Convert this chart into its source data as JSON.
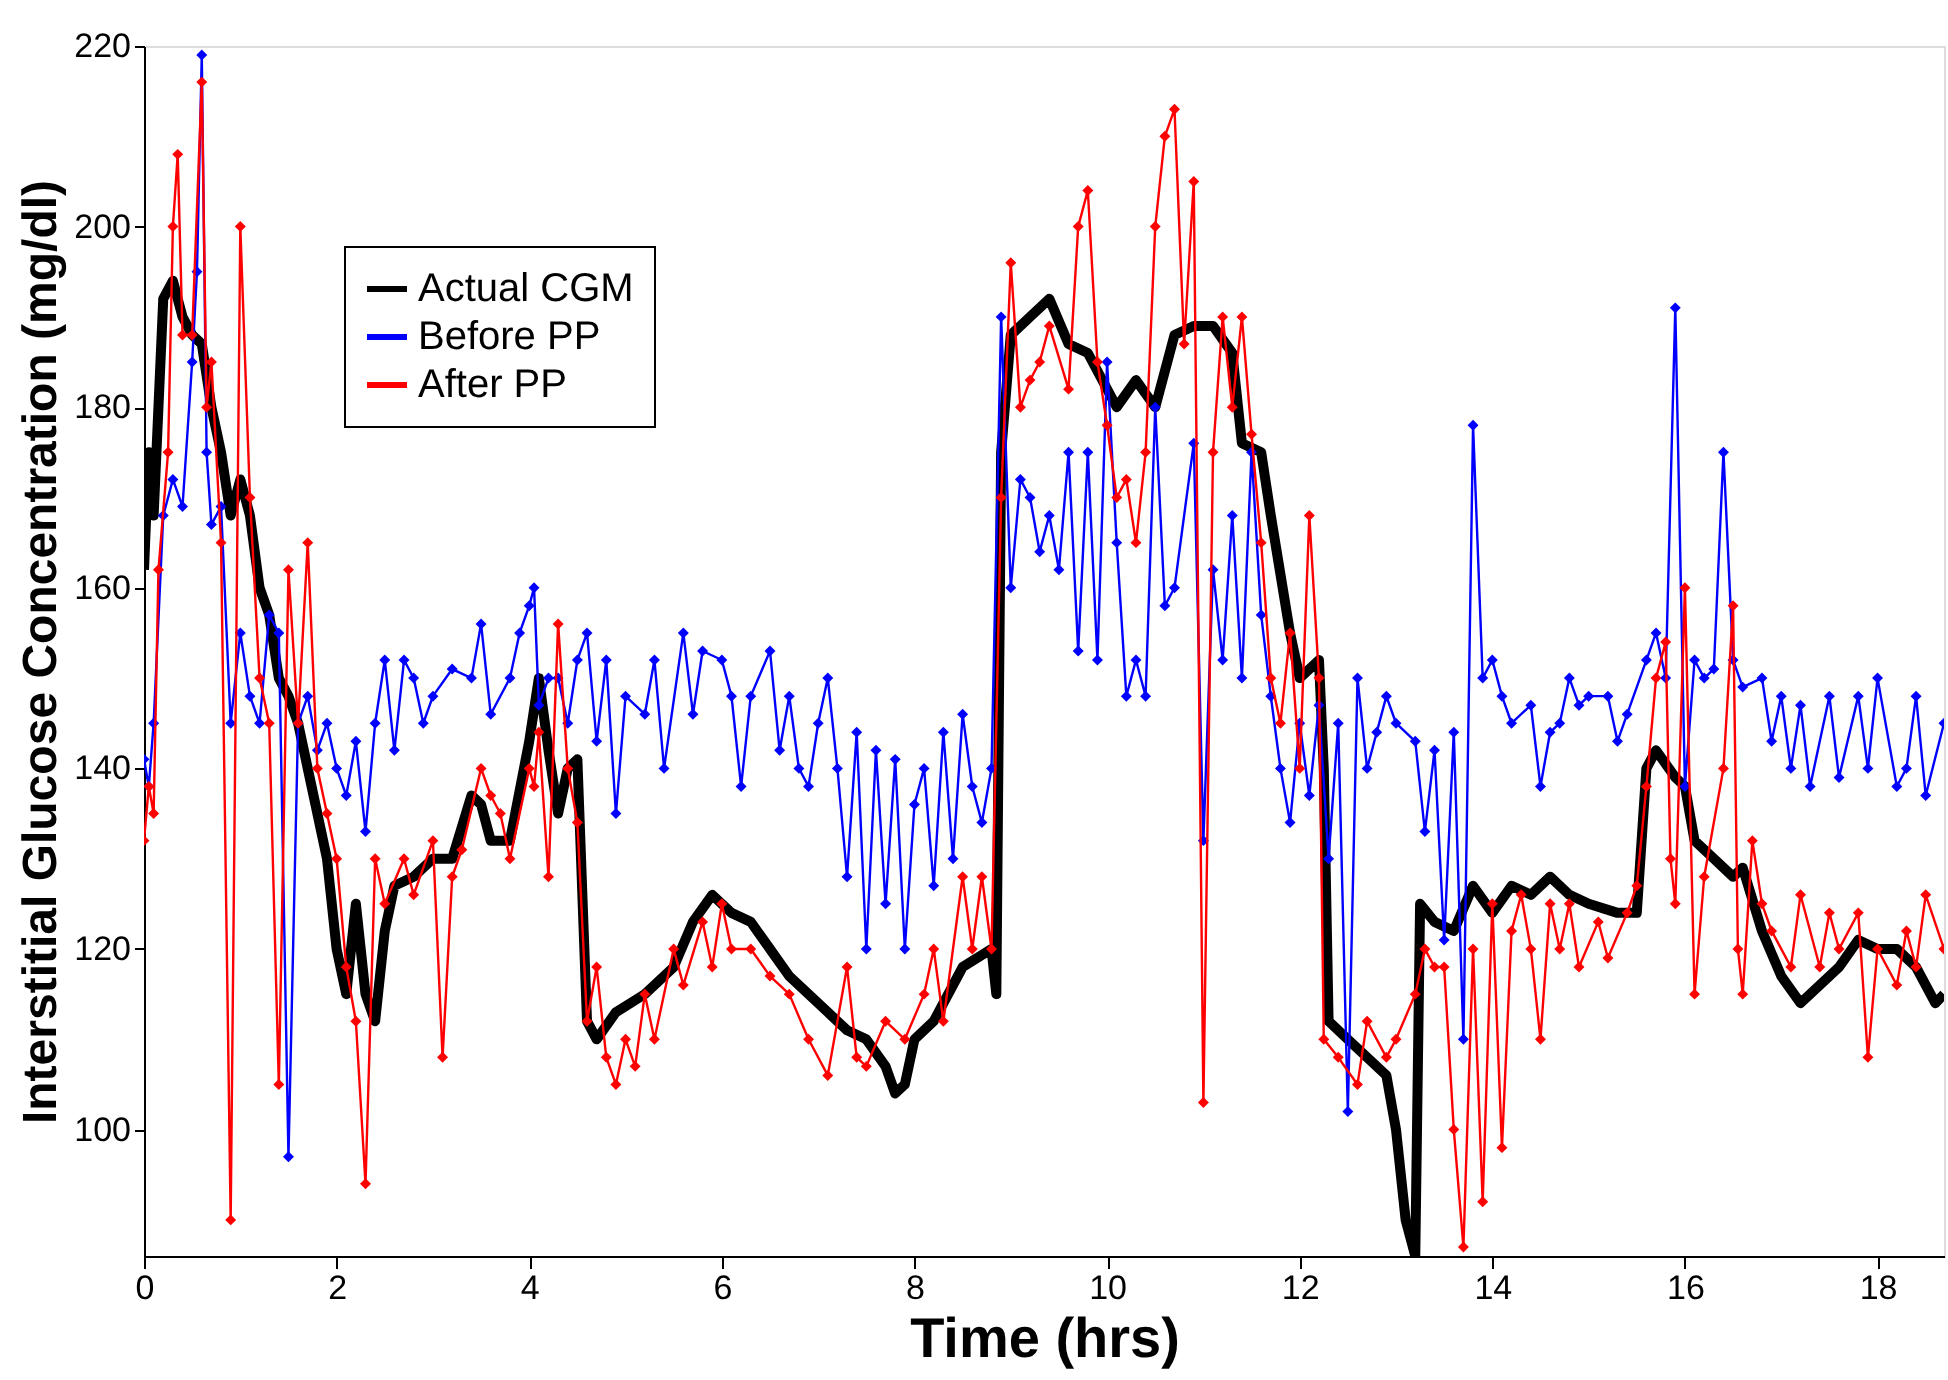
{
  "chart_data": {
    "type": "line",
    "xlabel": "Time (hrs)",
    "ylabel": "Interstitial Glucose Concentration (mg/dl)",
    "xlim": [
      0,
      18.69
    ],
    "ylim": [
      86,
      220
    ],
    "xticks": [
      0,
      2,
      4,
      6,
      8,
      10,
      12,
      14,
      16,
      18
    ],
    "yticks": [
      100,
      120,
      140,
      160,
      180,
      200,
      220
    ],
    "grid": false,
    "legend": "top left",
    "series": [
      {
        "name": "Actual CGM",
        "color": "#000000",
        "marker": "none",
        "x": [
          0,
          0.05,
          0.1,
          0.2,
          0.3,
          0.4,
          0.5,
          0.6,
          0.7,
          0.8,
          0.9,
          1.0,
          1.1,
          1.2,
          1.3,
          1.4,
          1.5,
          1.6,
          1.7,
          1.8,
          1.9,
          2.0,
          2.1,
          2.2,
          2.3,
          2.4,
          2.5,
          2.6,
          2.8,
          3.0,
          3.2,
          3.4,
          3.5,
          3.6,
          3.8,
          4.0,
          4.1,
          4.2,
          4.3,
          4.4,
          4.5,
          4.6,
          4.7,
          4.9,
          5.2,
          5.5,
          5.7,
          5.9,
          6.1,
          6.3,
          6.5,
          6.7,
          6.9,
          7.1,
          7.3,
          7.5,
          7.7,
          7.8,
          7.9,
          8.0,
          8.2,
          8.5,
          8.8,
          8.85,
          8.9,
          9.0,
          9.2,
          9.4,
          9.6,
          9.8,
          10.0,
          10.1,
          10.3,
          10.5,
          10.7,
          10.9,
          11.1,
          11.3,
          11.4,
          11.6,
          11.7,
          11.9,
          12.0,
          12.2,
          12.25,
          12.3,
          12.5,
          12.7,
          12.9,
          13.0,
          13.1,
          13.2,
          13.25,
          13.4,
          13.6,
          13.8,
          14.0,
          14.2,
          14.4,
          14.6,
          14.8,
          15.0,
          15.3,
          15.5,
          15.6,
          15.7,
          15.9,
          16.0,
          16.1,
          16.3,
          16.5,
          16.6,
          16.8,
          17.0,
          17.2,
          17.4,
          17.6,
          17.8,
          18.0,
          18.2,
          18.4,
          18.6,
          18.69
        ],
        "values": [
          162,
          175,
          168,
          192,
          194,
          190,
          188,
          187,
          180,
          175,
          168,
          172,
          168,
          160,
          157,
          150,
          148,
          145,
          140,
          135,
          130,
          120,
          115,
          125,
          115,
          112,
          122,
          127,
          128,
          130,
          130,
          137,
          136,
          132,
          132,
          143,
          150,
          142,
          135,
          140,
          141,
          112,
          110,
          113,
          115,
          118,
          123,
          126,
          124,
          123,
          120,
          117,
          115,
          113,
          111,
          110,
          107,
          104,
          105,
          110,
          112,
          118,
          120,
          115,
          175,
          188,
          190,
          192,
          187,
          186,
          182,
          180,
          183,
          180,
          188,
          189,
          189,
          186,
          176,
          175,
          168,
          155,
          150,
          152,
          140,
          112,
          110,
          108,
          106,
          100,
          90,
          86,
          125,
          123,
          122,
          127,
          124,
          127,
          126,
          128,
          126,
          125,
          124,
          124,
          140,
          142,
          139,
          138,
          132,
          130,
          128,
          129,
          122,
          117,
          114,
          116,
          118,
          121,
          120,
          120,
          118,
          114,
          115
        ]
      },
      {
        "name": "Before PP",
        "color": "#0000ff",
        "marker": "diamond",
        "x": [
          0,
          0.05,
          0.1,
          0.2,
          0.3,
          0.4,
          0.5,
          0.55,
          0.6,
          0.65,
          0.7,
          0.8,
          0.9,
          1.0,
          1.1,
          1.2,
          1.3,
          1.4,
          1.5,
          1.6,
          1.7,
          1.8,
          1.9,
          2.0,
          2.1,
          2.2,
          2.3,
          2.4,
          2.5,
          2.6,
          2.7,
          2.8,
          2.9,
          3.0,
          3.2,
          3.4,
          3.5,
          3.6,
          3.8,
          3.9,
          4.0,
          4.05,
          4.1,
          4.2,
          4.3,
          4.4,
          4.5,
          4.6,
          4.7,
          4.8,
          4.9,
          5.0,
          5.2,
          5.3,
          5.4,
          5.6,
          5.7,
          5.8,
          6.0,
          6.1,
          6.2,
          6.3,
          6.5,
          6.6,
          6.7,
          6.8,
          6.9,
          7.0,
          7.1,
          7.2,
          7.3,
          7.4,
          7.5,
          7.6,
          7.7,
          7.8,
          7.9,
          8.0,
          8.1,
          8.2,
          8.3,
          8.4,
          8.5,
          8.6,
          8.7,
          8.8,
          8.9,
          9.0,
          9.1,
          9.2,
          9.3,
          9.4,
          9.5,
          9.6,
          9.7,
          9.8,
          9.9,
          10.0,
          10.1,
          10.2,
          10.3,
          10.4,
          10.5,
          10.6,
          10.7,
          10.9,
          11.0,
          11.1,
          11.2,
          11.3,
          11.4,
          11.5,
          11.6,
          11.7,
          11.8,
          11.9,
          12.0,
          12.1,
          12.2,
          12.3,
          12.4,
          12.5,
          12.6,
          12.7,
          12.8,
          12.9,
          13.0,
          13.2,
          13.3,
          13.4,
          13.5,
          13.6,
          13.7,
          13.8,
          13.9,
          14.0,
          14.1,
          14.2,
          14.4,
          14.5,
          14.6,
          14.7,
          14.8,
          14.9,
          15.0,
          15.2,
          15.3,
          15.4,
          15.6,
          15.7,
          15.8,
          15.9,
          16.0,
          16.1,
          16.2,
          16.3,
          16.4,
          16.5,
          16.6,
          16.8,
          16.9,
          17.0,
          17.1,
          17.2,
          17.3,
          17.5,
          17.6,
          17.8,
          17.9,
          18.0,
          18.2,
          18.3,
          18.4,
          18.5,
          18.69
        ],
        "values": [
          141,
          138,
          145,
          168,
          172,
          169,
          185,
          195,
          219,
          175,
          167,
          169,
          145,
          155,
          148,
          145,
          157,
          155,
          97,
          145,
          148,
          142,
          145,
          140,
          137,
          143,
          133,
          145,
          152,
          142,
          152,
          150,
          145,
          148,
          151,
          150,
          156,
          146,
          150,
          155,
          158,
          160,
          147,
          150,
          150,
          145,
          152,
          155,
          143,
          152,
          135,
          148,
          146,
          152,
          140,
          155,
          146,
          153,
          152,
          148,
          138,
          148,
          153,
          142,
          148,
          140,
          138,
          145,
          150,
          140,
          128,
          144,
          120,
          142,
          125,
          141,
          120,
          136,
          140,
          127,
          144,
          130,
          146,
          138,
          134,
          140,
          190,
          160,
          172,
          170,
          164,
          168,
          162,
          175,
          153,
          175,
          152,
          185,
          165,
          148,
          152,
          148,
          180,
          158,
          160,
          176,
          132,
          162,
          152,
          168,
          150,
          175,
          157,
          148,
          140,
          134,
          145,
          137,
          147,
          130,
          145,
          102,
          150,
          140,
          144,
          148,
          145,
          143,
          133,
          142,
          121,
          144,
          110,
          178,
          150,
          152,
          148,
          145,
          147,
          138,
          144,
          145,
          150,
          147,
          148,
          148,
          143,
          146,
          152,
          155,
          150,
          191,
          138,
          152,
          150,
          151,
          175,
          152,
          149,
          150,
          143,
          148,
          140,
          147,
          138,
          148,
          139,
          148,
          140,
          150,
          138,
          140,
          148,
          137,
          145
        ]
      },
      {
        "name": "After PP",
        "color": "#ff0000",
        "marker": "diamond",
        "x": [
          0,
          0.05,
          0.1,
          0.15,
          0.25,
          0.3,
          0.35,
          0.4,
          0.5,
          0.6,
          0.65,
          0.7,
          0.8,
          0.9,
          1.0,
          1.1,
          1.2,
          1.3,
          1.4,
          1.5,
          1.6,
          1.7,
          1.8,
          1.9,
          2.0,
          2.1,
          2.2,
          2.3,
          2.4,
          2.5,
          2.7,
          2.8,
          3.0,
          3.1,
          3.2,
          3.3,
          3.5,
          3.6,
          3.7,
          3.8,
          4.0,
          4.05,
          4.1,
          4.2,
          4.3,
          4.4,
          4.5,
          4.6,
          4.7,
          4.8,
          4.9,
          5.0,
          5.1,
          5.2,
          5.3,
          5.5,
          5.6,
          5.8,
          5.9,
          6.0,
          6.1,
          6.3,
          6.5,
          6.7,
          6.9,
          7.1,
          7.3,
          7.4,
          7.5,
          7.7,
          7.9,
          8.1,
          8.2,
          8.3,
          8.5,
          8.6,
          8.7,
          8.8,
          8.9,
          9.0,
          9.1,
          9.2,
          9.3,
          9.4,
          9.6,
          9.7,
          9.8,
          9.9,
          10.0,
          10.1,
          10.2,
          10.3,
          10.4,
          10.5,
          10.6,
          10.7,
          10.8,
          10.9,
          11.0,
          11.1,
          11.2,
          11.3,
          11.4,
          11.5,
          11.6,
          11.7,
          11.8,
          11.9,
          12.0,
          12.1,
          12.2,
          12.25,
          12.4,
          12.6,
          12.7,
          12.9,
          13.0,
          13.2,
          13.3,
          13.4,
          13.5,
          13.6,
          13.7,
          13.8,
          13.9,
          14.0,
          14.1,
          14.2,
          14.3,
          14.4,
          14.5,
          14.6,
          14.7,
          14.8,
          14.9,
          15.1,
          15.2,
          15.4,
          15.5,
          15.6,
          15.7,
          15.8,
          15.85,
          15.9,
          16.0,
          16.1,
          16.2,
          16.4,
          16.5,
          16.55,
          16.6,
          16.7,
          16.8,
          16.9,
          17.1,
          17.2,
          17.4,
          17.5,
          17.6,
          17.8,
          17.9,
          18.0,
          18.2,
          18.3,
          18.4,
          18.5,
          18.69
        ],
        "values": [
          132,
          138,
          135,
          162,
          175,
          200,
          208,
          188,
          188,
          216,
          180,
          185,
          165,
          90,
          200,
          170,
          150,
          145,
          105,
          162,
          145,
          165,
          140,
          135,
          130,
          118,
          112,
          94,
          130,
          125,
          130,
          126,
          132,
          108,
          128,
          131,
          140,
          137,
          135,
          130,
          140,
          138,
          144,
          128,
          156,
          140,
          134,
          112,
          118,
          108,
          105,
          110,
          107,
          115,
          110,
          120,
          116,
          123,
          118,
          125,
          120,
          120,
          117,
          115,
          110,
          106,
          118,
          108,
          107,
          112,
          110,
          115,
          120,
          112,
          128,
          120,
          128,
          120,
          170,
          196,
          180,
          183,
          185,
          189,
          182,
          200,
          204,
          185,
          178,
          170,
          172,
          165,
          175,
          200,
          210,
          213,
          187,
          205,
          103,
          175,
          190,
          180,
          190,
          177,
          165,
          150,
          145,
          155,
          140,
          168,
          150,
          110,
          108,
          105,
          112,
          108,
          110,
          115,
          120,
          118,
          118,
          100,
          87,
          120,
          92,
          125,
          98,
          122,
          126,
          120,
          110,
          125,
          120,
          125,
          118,
          123,
          119,
          124,
          127,
          138,
          150,
          154,
          130,
          125,
          160,
          115,
          128,
          140,
          158,
          120,
          115,
          132,
          125,
          122,
          118,
          126,
          118,
          124,
          120,
          124,
          108,
          120,
          116,
          122,
          118,
          126,
          120
        ]
      }
    ]
  }
}
